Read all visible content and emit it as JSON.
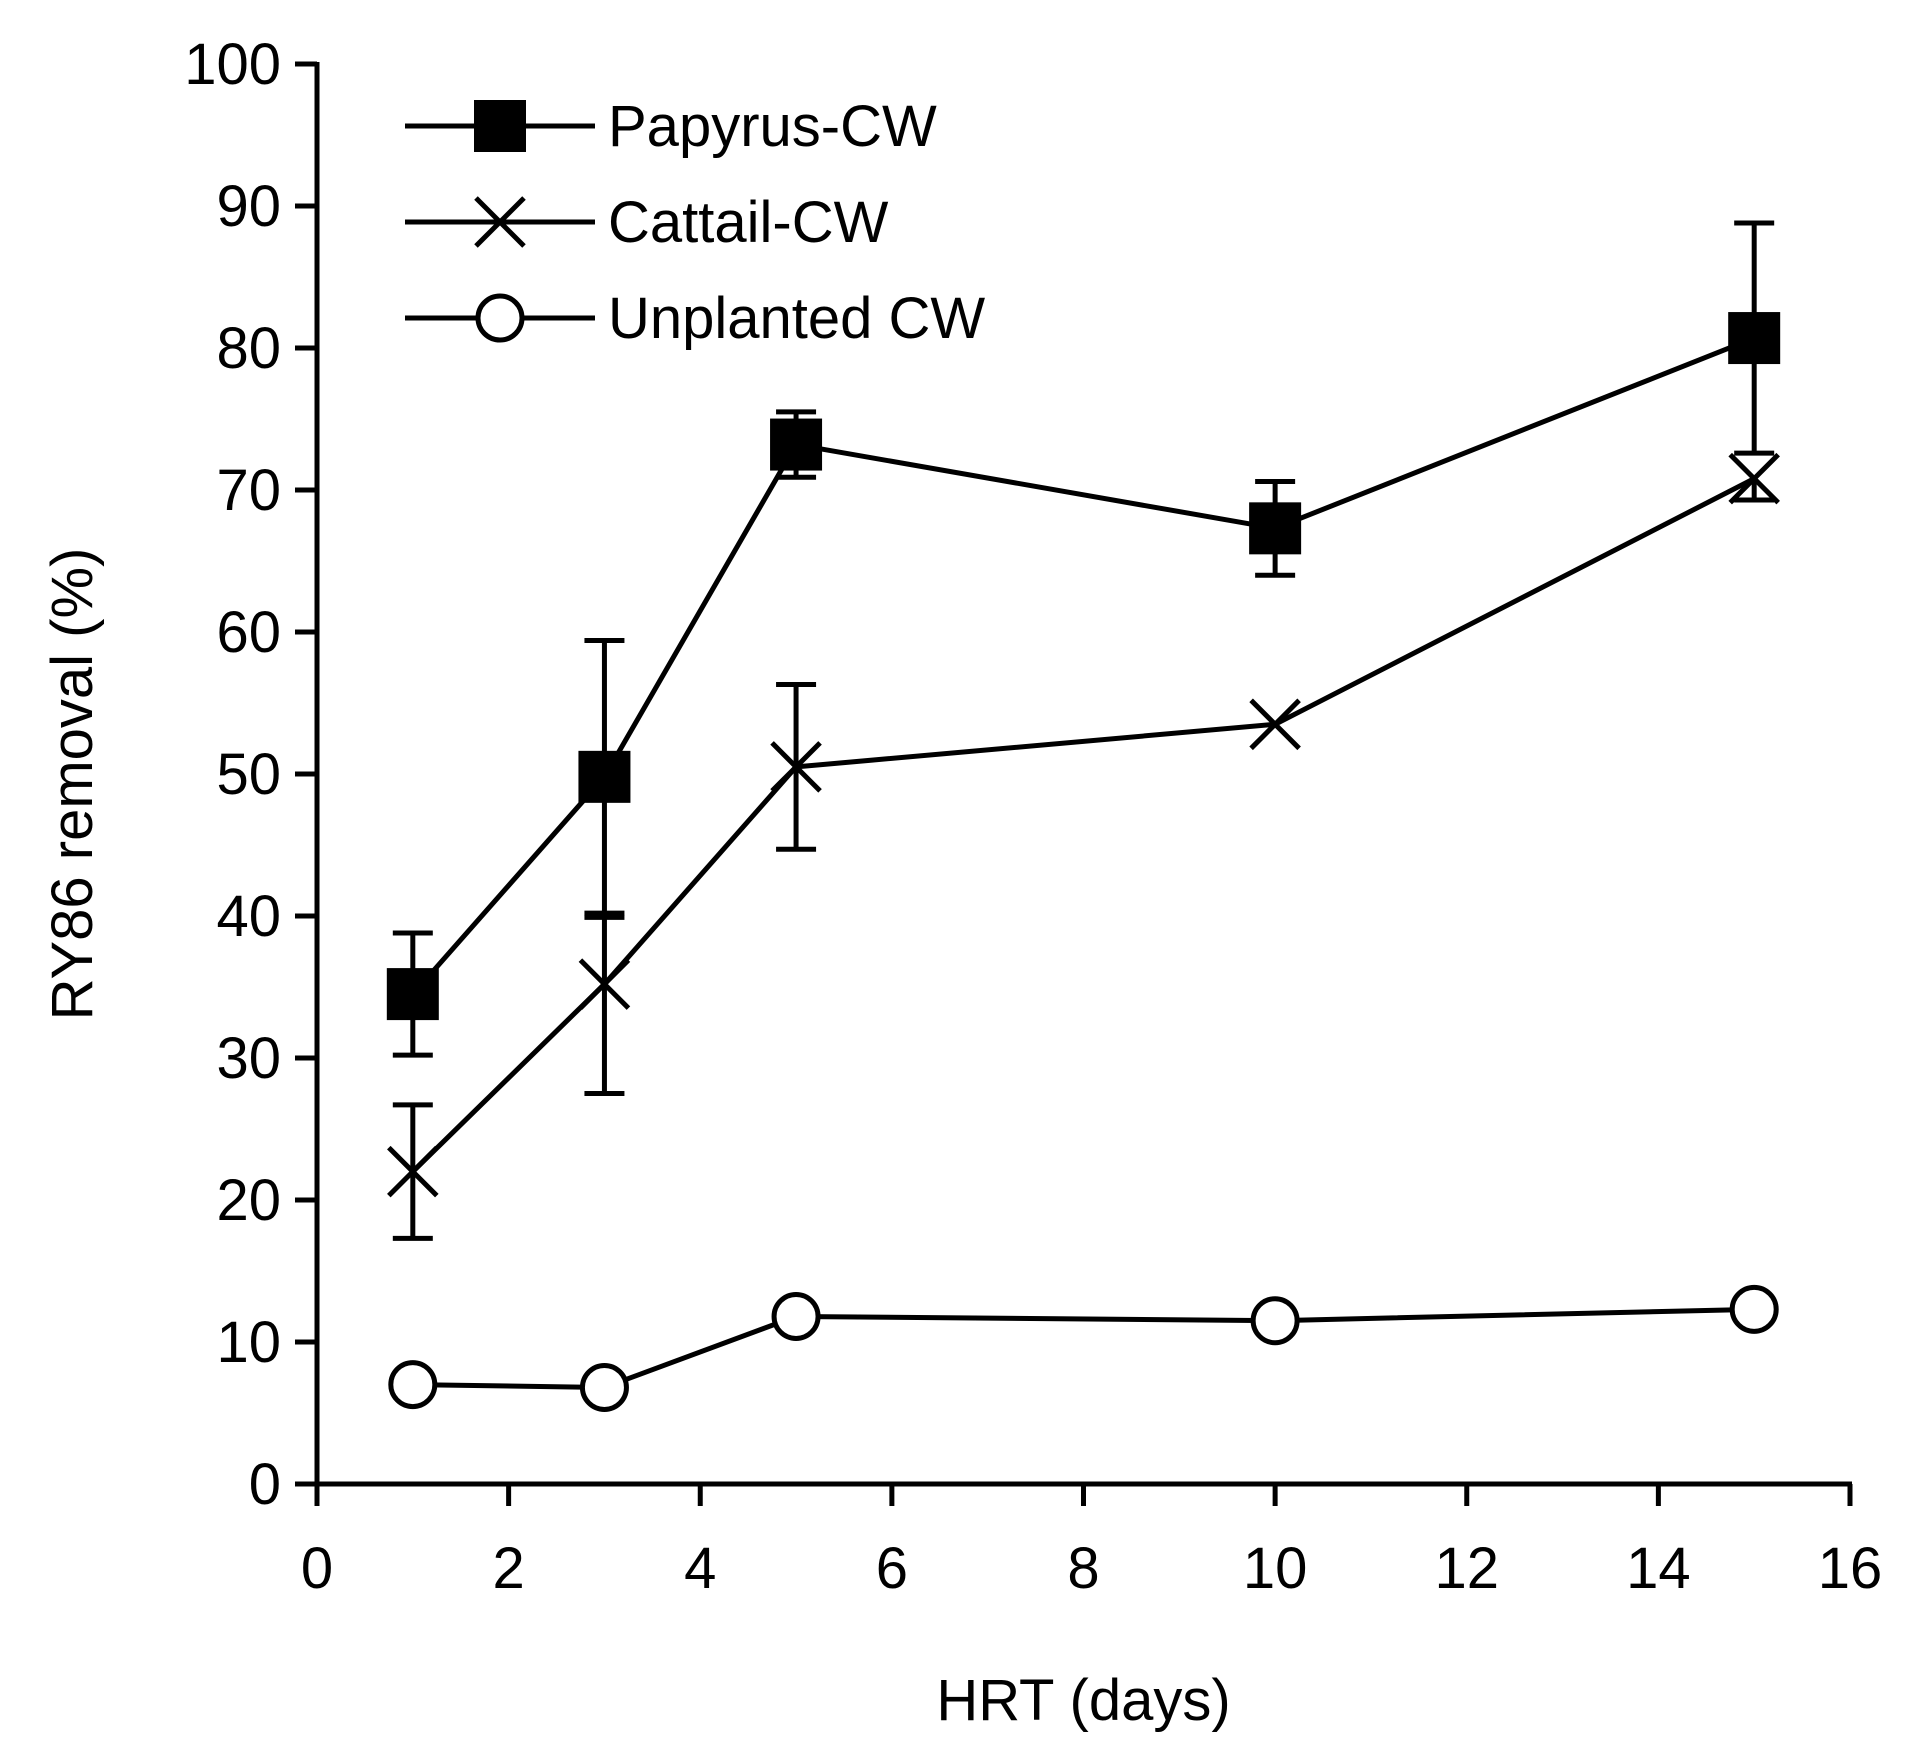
{
  "chart_data": {
    "type": "line",
    "title": "",
    "xlabel": "HRT (days)",
    "ylabel": "RY86 removal (%)",
    "xlim": [
      0,
      16
    ],
    "ylim": [
      0,
      100
    ],
    "xticks": [
      0,
      2,
      4,
      6,
      8,
      10,
      12,
      14,
      16
    ],
    "yticks": [
      0,
      10,
      20,
      30,
      40,
      50,
      60,
      70,
      80,
      90,
      100
    ],
    "grid": false,
    "legend_position": "top-left",
    "series": [
      {
        "name": "Papyrus-CW",
        "marker": "square-filled",
        "x": [
          1,
          3,
          5,
          10,
          15
        ],
        "y": [
          34.5,
          49.8,
          73.2,
          67.3,
          80.7
        ],
        "error_up": [
          4.3,
          9.6,
          2.3,
          3.3,
          8.1
        ],
        "error_down": [
          4.3,
          9.6,
          2.3,
          3.3,
          8.1
        ]
      },
      {
        "name": "Cattail-CW",
        "marker": "x",
        "x": [
          1,
          3,
          5,
          10,
          15
        ],
        "y": [
          22.0,
          35.2,
          50.5,
          53.5,
          70.8
        ],
        "error_up": [
          4.7,
          4.7,
          5.8,
          0.0,
          0.0
        ],
        "error_down": [
          4.7,
          7.7,
          5.8,
          0.0,
          1.5
        ]
      },
      {
        "name": "Unplanted CW",
        "marker": "circle-open",
        "x": [
          1,
          3,
          5,
          10,
          15
        ],
        "y": [
          7.0,
          6.8,
          11.8,
          11.5,
          12.3
        ],
        "error_up": [
          0,
          0,
          0,
          0,
          0
        ],
        "error_down": [
          0,
          0,
          0,
          0,
          0
        ]
      }
    ]
  }
}
